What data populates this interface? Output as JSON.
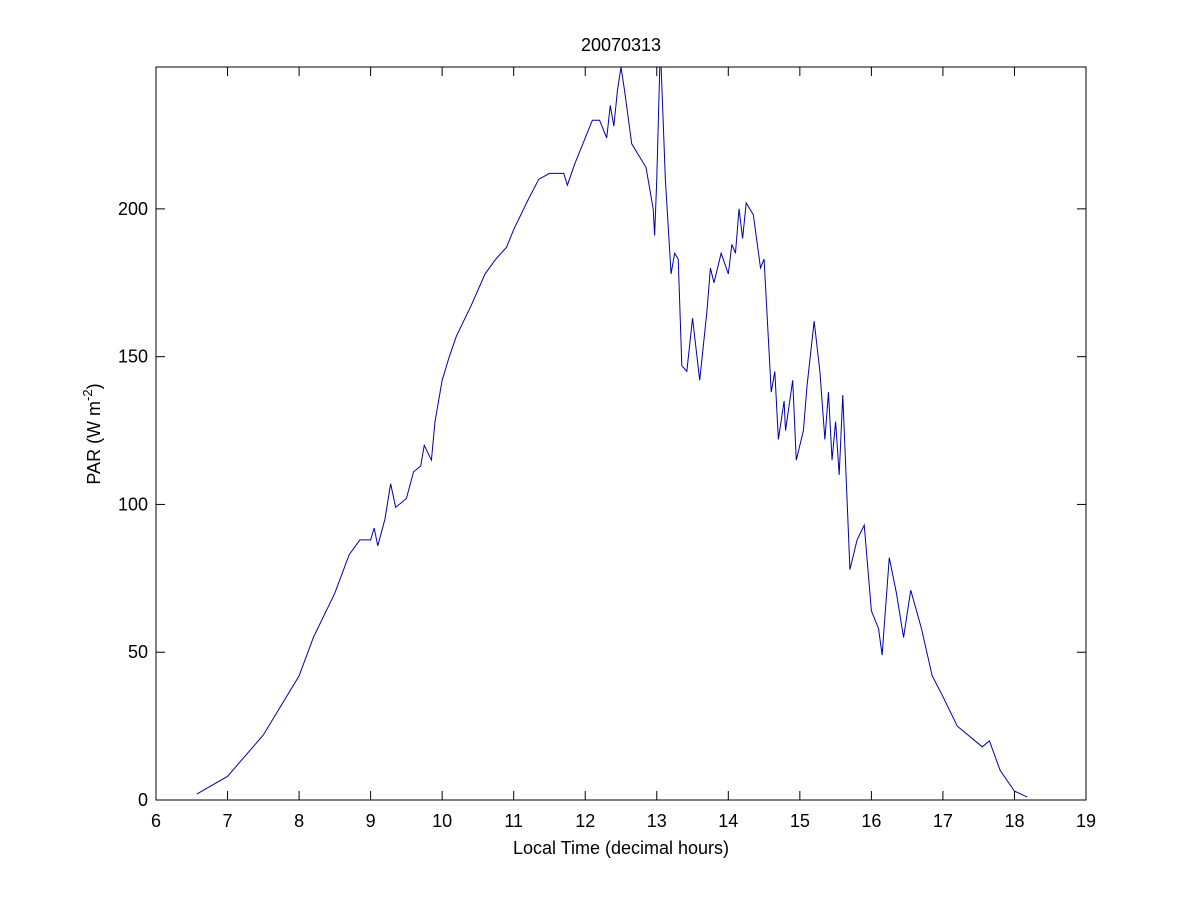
{
  "chart_data": {
    "type": "line",
    "title": "20070313",
    "xlabel": "Local Time (decimal hours)",
    "ylabel": {
      "text": "PAR (W m",
      "superscript": "-2",
      "suffix": ")"
    },
    "xlim": [
      6,
      19
    ],
    "xticks": [
      6,
      7,
      8,
      9,
      10,
      11,
      12,
      13,
      14,
      15,
      16,
      17,
      18,
      19
    ],
    "ylim": [
      0,
      248
    ],
    "yticks": [
      0,
      50,
      100,
      150,
      200
    ],
    "grid": false,
    "series": [
      {
        "name": "PAR",
        "color": "#0000aa",
        "x": [
          6.57,
          7,
          7.5,
          8,
          8.2,
          8.5,
          8.7,
          8.85,
          9,
          9.05,
          9.1,
          9.2,
          9.28,
          9.35,
          9.5,
          9.6,
          9.7,
          9.75,
          9.85,
          9.9,
          10,
          10.1,
          10.2,
          10.4,
          10.6,
          10.75,
          10.9,
          11,
          11.2,
          11.35,
          11.5,
          11.7,
          11.75,
          11.85,
          12,
          12.1,
          12.2,
          12.3,
          12.35,
          12.4,
          12.45,
          12.5,
          12.55,
          12.65,
          12.75,
          12.85,
          12.95,
          12.97,
          13,
          13.05,
          13.12,
          13.2,
          13.25,
          13.3,
          13.35,
          13.42,
          13.5,
          13.6,
          13.7,
          13.75,
          13.8,
          13.9,
          14,
          14.05,
          14.1,
          14.15,
          14.2,
          14.25,
          14.35,
          14.45,
          14.5,
          14.6,
          14.65,
          14.7,
          14.78,
          14.8,
          14.9,
          14.95,
          15.05,
          15.1,
          15.2,
          15.28,
          15.35,
          15.4,
          15.45,
          15.5,
          15.55,
          15.6,
          15.7,
          15.8,
          15.9,
          16,
          16.1,
          16.15,
          16.25,
          16.35,
          16.45,
          16.55,
          16.7,
          16.85,
          17,
          17.2,
          17.4,
          17.55,
          17.65,
          17.8,
          18,
          18.18
        ],
        "values": [
          2,
          8,
          22,
          42,
          55,
          70,
          83,
          88,
          88,
          92,
          86,
          95,
          107,
          99,
          102,
          111,
          113,
          120,
          115,
          128,
          142,
          150,
          157,
          167,
          178,
          183,
          187,
          193,
          203,
          210,
          212,
          212,
          208,
          215,
          224,
          230,
          230,
          224,
          235,
          228,
          240,
          248,
          240,
          222,
          218,
          214,
          200,
          191,
          210,
          255,
          210,
          178,
          185,
          183,
          147,
          145,
          163,
          142,
          165,
          180,
          175,
          185,
          178,
          188,
          185,
          200,
          190,
          202,
          198,
          180,
          183,
          138,
          145,
          122,
          135,
          125,
          142,
          115,
          125,
          140,
          162,
          145,
          122,
          138,
          115,
          128,
          110,
          137,
          78,
          88,
          93,
          64,
          58,
          49,
          82,
          70,
          55,
          71,
          58,
          42,
          35,
          25,
          21,
          18,
          20,
          10,
          3,
          1
        ]
      }
    ]
  }
}
